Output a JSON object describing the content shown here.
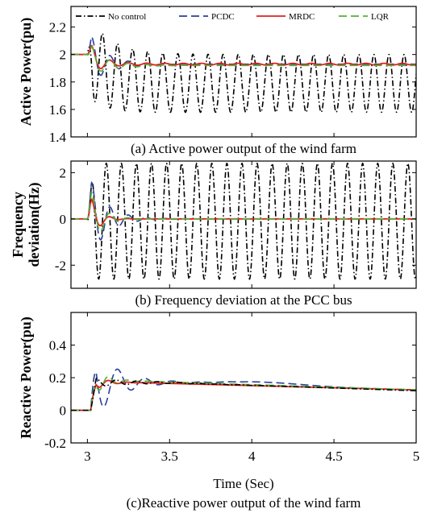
{
  "chart_data": [
    {
      "type": "line",
      "caption": "(a) Active power output of the wind farm",
      "ylabel": "Active Power(pu)",
      "xlim": [
        2.9,
        5
      ],
      "ylim": [
        1.4,
        2.35
      ],
      "yticks": [
        "1.4",
        "1.6",
        "1.8",
        "2",
        "2.2"
      ],
      "ytick_values": [
        1.4,
        1.6,
        1.8,
        2.0,
        2.2
      ],
      "grid": false,
      "legend": {
        "placement": "top",
        "entries": [
          "No control",
          "PCDC",
          "MRDC",
          "LQR"
        ]
      },
      "series": [
        {
          "name": "No control",
          "color": "#000000",
          "dash": "dashdot",
          "model": {
            "base": 2.0,
            "fault_t": 3.0,
            "settle": 1.79,
            "osc_amp": 0.21,
            "osc_freq": 10.9,
            "start_amp": 0.3
          }
        },
        {
          "name": "PCDC",
          "color": "#2a3e9c",
          "dash": "dash",
          "model": {
            "base": 2.0,
            "fault_t": 3.0,
            "final": 1.93,
            "peak": 2.2,
            "dip": 1.8,
            "decay": 9
          }
        },
        {
          "name": "MRDC",
          "color": "#e02020",
          "dash": "solid",
          "model": {
            "base": 2.0,
            "fault_t": 3.0,
            "final": 1.93,
            "peak": 2.11,
            "dip": 1.86,
            "decay": 14
          }
        },
        {
          "name": "LQR",
          "color": "#55b030",
          "dash": "dash",
          "model": {
            "base": 2.0,
            "fault_t": 3.0,
            "final": 1.92,
            "peak": 2.09,
            "dip": 1.87,
            "decay": 8
          }
        }
      ]
    },
    {
      "type": "line",
      "caption": "(b) Frequency deviation at the PCC bus",
      "ylabel": "Frequency deviation(Hz)",
      "ylabel_lines": [
        "Frequency",
        "deviation(Hz)"
      ],
      "xlim": [
        2.9,
        5
      ],
      "ylim": [
        -3.0,
        2.5
      ],
      "yticks": [
        "-2",
        "0",
        "2"
      ],
      "ytick_values": [
        -2,
        0,
        2
      ],
      "grid": false,
      "series": [
        {
          "name": "No control",
          "color": "#000000",
          "dash": "dashdot",
          "model": {
            "amp": 2.5,
            "osc_freq": 10.9,
            "center": -0.1
          }
        },
        {
          "name": "PCDC",
          "color": "#2a3e9c",
          "dash": "dash",
          "model": {
            "peak": 2.4,
            "dip": -1.7,
            "decay": 10
          }
        },
        {
          "name": "MRDC",
          "color": "#e02020",
          "dash": "solid",
          "model": {
            "peak": 2.2,
            "dip": -0.7,
            "decay": 20
          }
        },
        {
          "name": "LQR",
          "color": "#55b030",
          "dash": "dash",
          "model": {
            "peak": 2.4,
            "dip": -0.9,
            "decay": 14
          }
        }
      ]
    },
    {
      "type": "line",
      "caption": "(c)Reactive power output of the wind farm",
      "ylabel": "Reactive Power(pu)",
      "xlabel": "Time (Sec)",
      "xlim": [
        2.9,
        5
      ],
      "ylim": [
        -0.2,
        0.6
      ],
      "yticks": [
        "-0.2",
        "0",
        "0.2",
        "0.4"
      ],
      "ytick_values": [
        -0.2,
        0,
        0.2,
        0.4
      ],
      "xticks": [
        "3",
        "3.5",
        "4",
        "4.5",
        "5"
      ],
      "xtick_values": [
        3,
        3.5,
        4,
        4.5,
        5
      ],
      "grid": false,
      "series": [
        {
          "name": "PCDC",
          "color": "#2a3e9c",
          "dash": "dash",
          "model": {
            "peak": 0.43,
            "hump_t": 4.05,
            "hump": 0.19,
            "end": 0.12
          }
        },
        {
          "name": "MRDC",
          "color": "#e02020",
          "dash": "solid",
          "model": {
            "peak": 0.23,
            "plateau": 0.17,
            "end": 0.125
          }
        },
        {
          "name": "LQR",
          "color": "#55b030",
          "dash": "dash",
          "model": {
            "peak": 0.3,
            "plateau": 0.18,
            "end": 0.125
          }
        },
        {
          "name": "No control",
          "color": "#000000",
          "dash": "dashdot",
          "model": {
            "plateau": 0.17,
            "end": 0.12
          }
        }
      ]
    }
  ]
}
